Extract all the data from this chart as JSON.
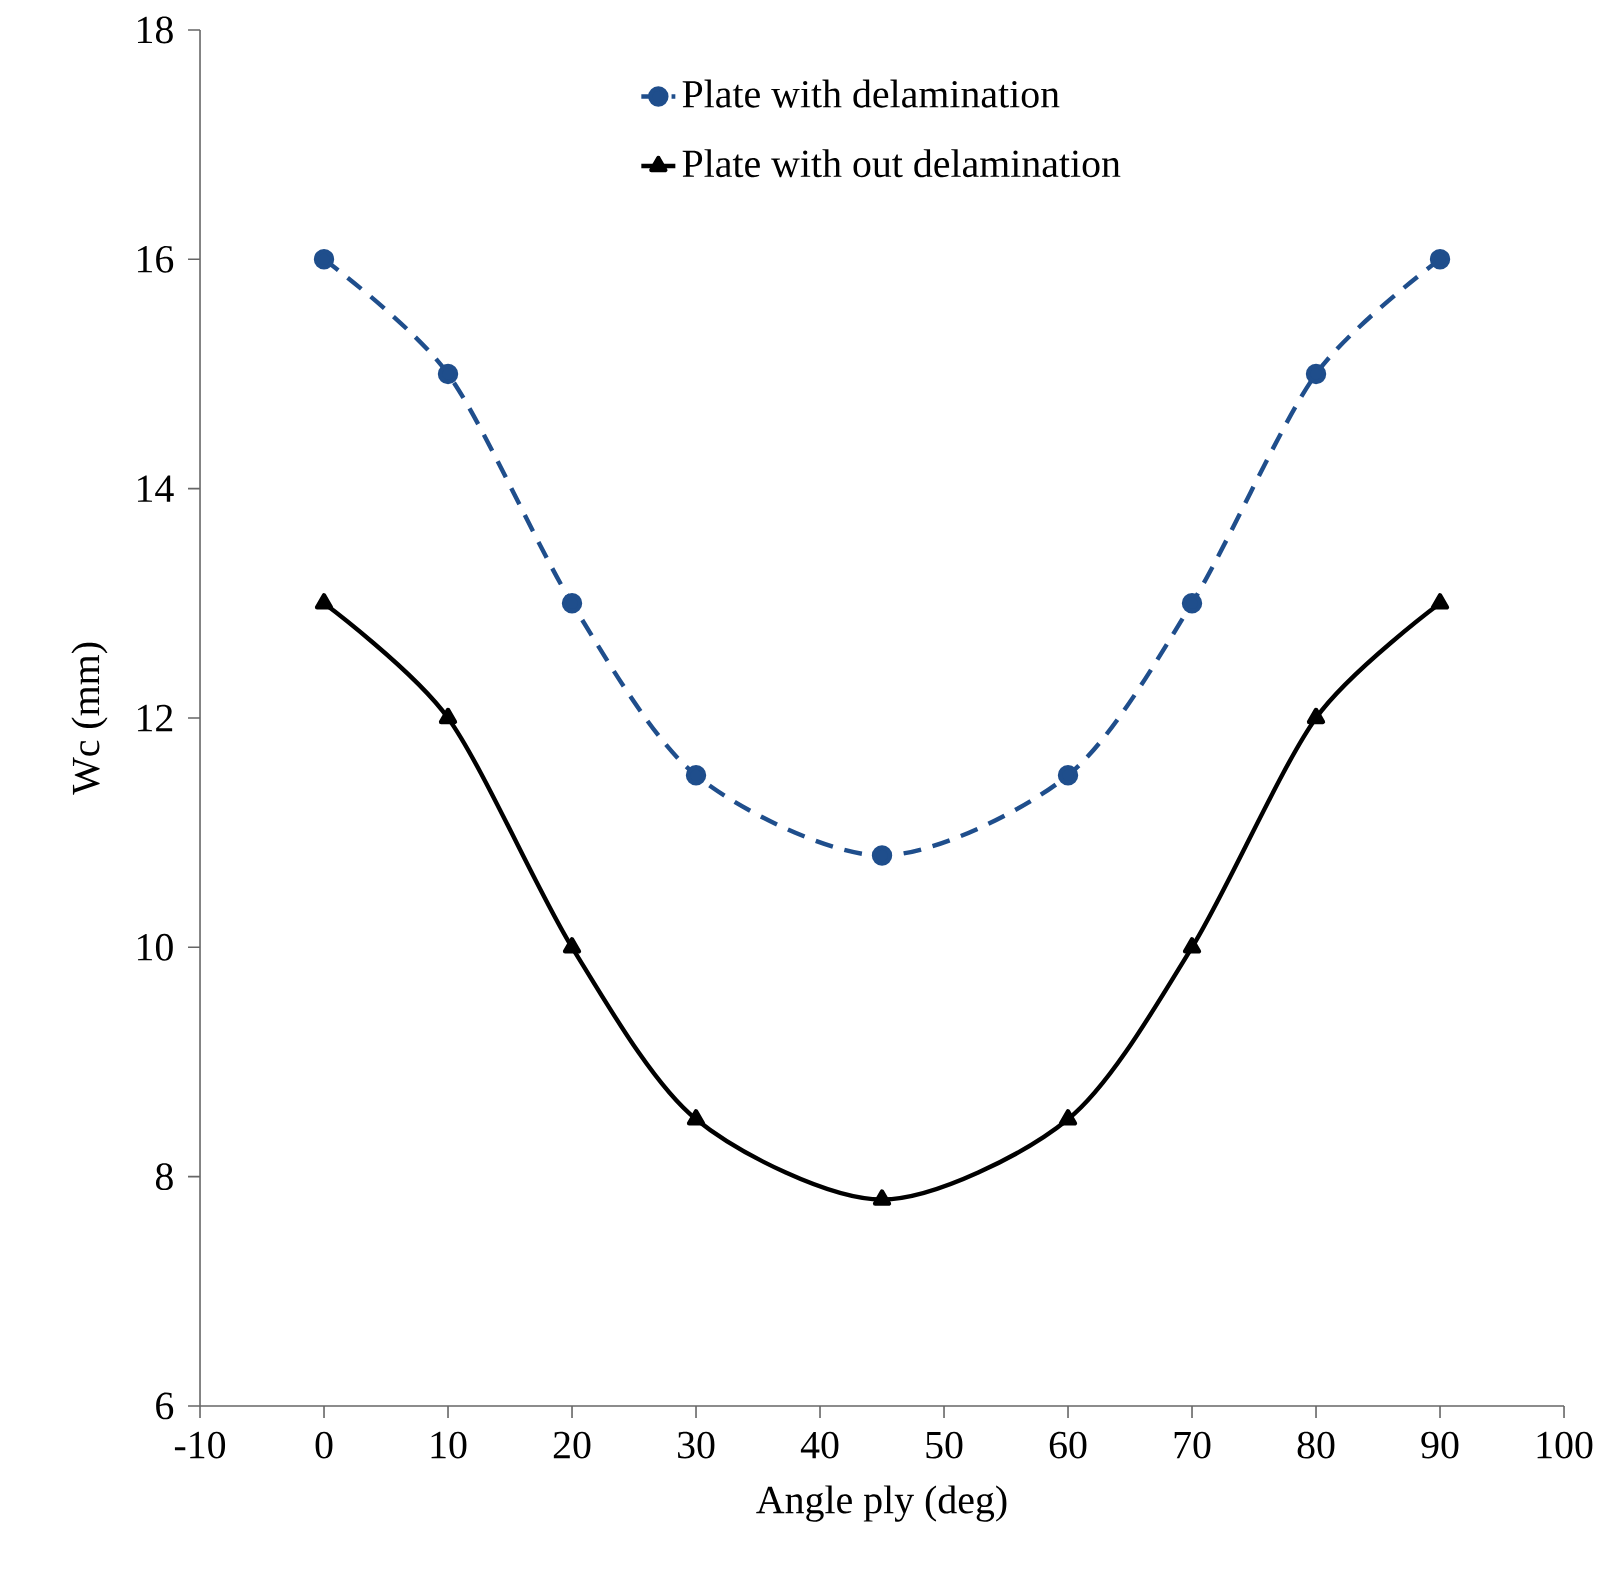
{
  "chart_data": {
    "type": "line",
    "xlabel": "Angle ply (deg)",
    "ylabel": "Wc (mm)",
    "x": [
      0,
      10,
      20,
      30,
      45,
      60,
      70,
      80,
      90
    ],
    "series": [
      {
        "name": "Plate with delamination",
        "color": "#1f4e8c",
        "marker": "circle",
        "line_style": "dashed",
        "values": [
          16,
          15,
          13,
          11.5,
          10.8,
          11.5,
          13,
          15,
          16
        ]
      },
      {
        "name": "Plate with out delamination",
        "color": "#000000",
        "marker": "triangle",
        "line_style": "solid",
        "values": [
          13,
          12,
          10,
          8.5,
          7.8,
          8.5,
          10,
          12,
          13
        ]
      }
    ],
    "xlim": [
      -10,
      100
    ],
    "xticks": [
      -10,
      0,
      10,
      20,
      30,
      40,
      50,
      60,
      70,
      80,
      90,
      100
    ],
    "ylim": [
      6,
      18
    ],
    "yticks": [
      6,
      8,
      10,
      12,
      14,
      16,
      18
    ],
    "grid": false,
    "legend": "top"
  }
}
